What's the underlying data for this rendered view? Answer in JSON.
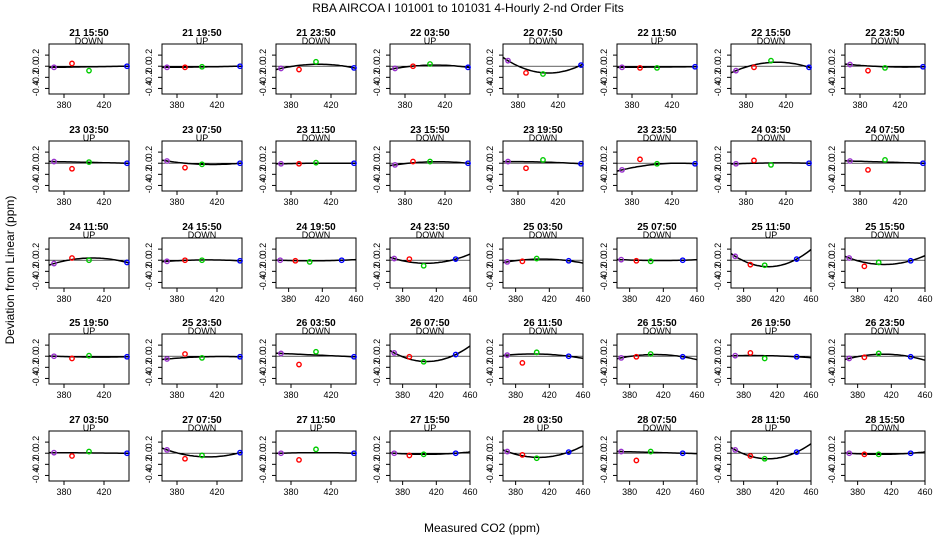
{
  "chart_data": {
    "type": "scatter",
    "title": "RBA   AIRCOA I    101001 to 101031   4-Hourly 2-nd Order Fits",
    "xlabel": "Measured CO2 (ppm)",
    "ylabel": "Deviation from Linear (ppm)",
    "xlim": [
      365,
      445
    ],
    "xlim_wide": [
      365,
      460
    ],
    "ylim": [
      -0.5,
      0.4
    ],
    "yticks": [
      "-0.4",
      "-0.2",
      "0.0",
      "0.2"
    ],
    "xticks": [
      "380",
      "420"
    ],
    "xticks_wide": [
      "380",
      "420",
      "460"
    ],
    "grid": false,
    "standards": {
      "x": [
        370,
        388,
        405,
        443
      ],
      "colors": [
        "#9933cc",
        "#ff0000",
        "#00cc00",
        "#0000ff"
      ]
    },
    "panels": [
      {
        "title": "21 15:50",
        "mode": "DOWN",
        "y": [
          -0.02,
          0.05,
          -0.08,
          0.0
        ],
        "a": 0.0,
        "wide": false
      },
      {
        "title": "21 19:50",
        "mode": "UP",
        "y": [
          -0.02,
          -0.02,
          -0.01,
          0.0
        ],
        "a": 0.002,
        "wide": false
      },
      {
        "title": "21 23:50",
        "mode": "DOWN",
        "y": [
          -0.04,
          -0.06,
          0.08,
          -0.03
        ],
        "a": -0.07,
        "wide": false
      },
      {
        "title": "22 03:50",
        "mode": "UP",
        "y": [
          -0.04,
          0.0,
          0.04,
          -0.02
        ],
        "a": -0.05,
        "wide": false
      },
      {
        "title": "22 07:50",
        "mode": "DOWN",
        "y": [
          0.1,
          -0.12,
          -0.14,
          0.02
        ],
        "a": 0.18,
        "wide": false
      },
      {
        "title": "22 11:50",
        "mode": "UP",
        "y": [
          -0.02,
          -0.03,
          -0.03,
          -0.01
        ],
        "a": 0.0,
        "wide": false
      },
      {
        "title": "22 15:50",
        "mode": "DOWN",
        "y": [
          -0.08,
          -0.02,
          0.1,
          -0.02
        ],
        "a": -0.12,
        "wide": false
      },
      {
        "title": "22 23:50",
        "mode": "DOWN",
        "y": [
          0.03,
          -0.08,
          -0.03,
          -0.01
        ],
        "a": 0.02,
        "wide": false
      },
      {
        "title": "23 03:50",
        "mode": "UP",
        "y": [
          0.03,
          -0.1,
          0.02,
          0.0
        ],
        "a": 0.0,
        "wide": false
      },
      {
        "title": "23 07:50",
        "mode": "UP",
        "y": [
          0.04,
          -0.08,
          -0.02,
          0.0
        ],
        "a": 0.04,
        "wide": false
      },
      {
        "title": "23 11:50",
        "mode": "DOWN",
        "y": [
          -0.01,
          -0.01,
          0.01,
          0.0
        ],
        "a": -0.005,
        "wide": false
      },
      {
        "title": "23 15:50",
        "mode": "DOWN",
        "y": [
          -0.03,
          0.03,
          0.03,
          0.0
        ],
        "a": -0.04,
        "wide": false
      },
      {
        "title": "23 19:50",
        "mode": "DOWN",
        "y": [
          0.03,
          -0.09,
          0.06,
          -0.01
        ],
        "a": -0.01,
        "wide": false
      },
      {
        "title": "23 23:50",
        "mode": "DOWN",
        "y": [
          -0.12,
          0.07,
          -0.01,
          -0.01
        ],
        "a": -0.05,
        "wide": false
      },
      {
        "title": "24 03:50",
        "mode": "DOWN",
        "y": [
          -0.01,
          0.05,
          -0.03,
          0.0
        ],
        "a": -0.01,
        "wide": false
      },
      {
        "title": "24 07:50",
        "mode": "DOWN",
        "y": [
          0.04,
          -0.12,
          0.06,
          0.0
        ],
        "a": 0.0,
        "wide": false
      },
      {
        "title": "24 11:50",
        "mode": "UP",
        "y": [
          -0.06,
          0.04,
          0.0,
          -0.04
        ],
        "a": -0.09,
        "wide": false
      },
      {
        "title": "24 15:50",
        "mode": "DOWN",
        "y": [
          -0.02,
          0.0,
          0.0,
          -0.01
        ],
        "a": -0.02,
        "wide": false
      },
      {
        "title": "24 19:50",
        "mode": "DOWN",
        "y": [
          0.0,
          -0.01,
          -0.03,
          0.0
        ],
        "a": 0.01,
        "wide": true
      },
      {
        "title": "24 23:50",
        "mode": "DOWN",
        "y": [
          0.03,
          0.02,
          -0.1,
          0.02
        ],
        "a": 0.08,
        "wide": true
      },
      {
        "title": "25 03:50",
        "mode": "DOWN",
        "y": [
          -0.03,
          -0.02,
          0.03,
          -0.01
        ],
        "a": -0.04,
        "wide": true
      },
      {
        "title": "25 07:50",
        "mode": "DOWN",
        "y": [
          0.01,
          -0.01,
          -0.02,
          0.0
        ],
        "a": 0.01,
        "wide": true
      },
      {
        "title": "25 11:50",
        "mode": "UP",
        "y": [
          0.07,
          -0.08,
          -0.09,
          0.02
        ],
        "a": 0.16,
        "wide": true
      },
      {
        "title": "25 15:50",
        "mode": "DOWN",
        "y": [
          0.04,
          -0.11,
          -0.04,
          -0.01
        ],
        "a": 0.09,
        "wide": true
      },
      {
        "title": "25 19:50",
        "mode": "UP",
        "y": [
          0.0,
          -0.04,
          0.01,
          -0.01
        ],
        "a": 0.01,
        "wide": false
      },
      {
        "title": "25 23:50",
        "mode": "DOWN",
        "y": [
          -0.05,
          0.04,
          -0.03,
          -0.01
        ],
        "a": -0.02,
        "wide": false
      },
      {
        "title": "26 03:50",
        "mode": "DOWN",
        "y": [
          0.05,
          -0.15,
          0.08,
          -0.01
        ],
        "a": 0.0,
        "wide": false
      },
      {
        "title": "26 07:50",
        "mode": "DOWN",
        "y": [
          0.06,
          -0.01,
          -0.1,
          0.03
        ],
        "a": 0.14,
        "wide": true
      },
      {
        "title": "26 11:50",
        "mode": "DOWN",
        "y": [
          0.02,
          -0.12,
          0.07,
          0.0
        ],
        "a": -0.03,
        "wide": true
      },
      {
        "title": "26 15:50",
        "mode": "DOWN",
        "y": [
          -0.03,
          -0.01,
          0.04,
          -0.01
        ],
        "a": -0.05,
        "wide": true
      },
      {
        "title": "26 19:50",
        "mode": "UP",
        "y": [
          0.01,
          0.06,
          -0.04,
          -0.01
        ],
        "a": -0.01,
        "wide": true
      },
      {
        "title": "26 23:50",
        "mode": "DOWN",
        "y": [
          -0.04,
          -0.02,
          0.05,
          -0.01
        ],
        "a": -0.06,
        "wide": true
      },
      {
        "title": "27 03:50",
        "mode": "UP",
        "y": [
          0.01,
          -0.05,
          0.03,
          0.0
        ],
        "a": 0.0,
        "wide": false
      },
      {
        "title": "27 07:50",
        "mode": "DOWN",
        "y": [
          0.06,
          -0.1,
          -0.04,
          0.01
        ],
        "a": 0.1,
        "wide": false
      },
      {
        "title": "27 11:50",
        "mode": "UP",
        "y": [
          0.0,
          -0.12,
          0.07,
          0.0
        ],
        "a": -0.01,
        "wide": false
      },
      {
        "title": "27 15:50",
        "mode": "UP",
        "y": [
          0.0,
          -0.04,
          -0.02,
          0.0
        ],
        "a": 0.02,
        "wide": true
      },
      {
        "title": "28 03:50",
        "mode": "UP",
        "y": [
          0.03,
          -0.03,
          -0.09,
          0.02
        ],
        "a": 0.1,
        "wide": true
      },
      {
        "title": "28 07:50",
        "mode": "DOWN",
        "y": [
          0.03,
          -0.13,
          0.03,
          0.0
        ],
        "a": 0.0,
        "wide": true
      },
      {
        "title": "28 11:50",
        "mode": "UP",
        "y": [
          0.06,
          -0.05,
          -0.1,
          0.02
        ],
        "a": 0.14,
        "wide": true
      },
      {
        "title": "28 15:50",
        "mode": "DOWN",
        "y": [
          0.0,
          -0.02,
          -0.02,
          0.0
        ],
        "a": 0.02,
        "wide": true
      }
    ]
  }
}
